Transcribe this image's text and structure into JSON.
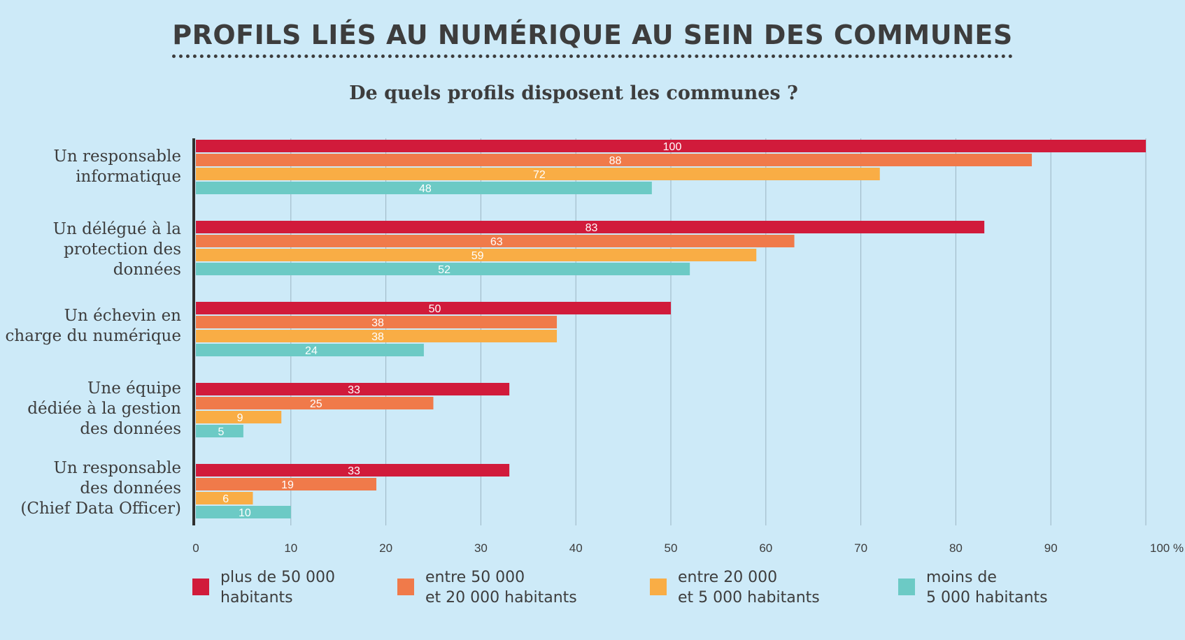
{
  "title": "PROFILS LIÉS AU NUMÉRIQUE AU SEIN DES COMMUNES",
  "subtitle": "De quels profils disposent les communes ?",
  "chart_data": {
    "type": "bar",
    "orientation": "horizontal",
    "categories": [
      "Un responsable\ninformatique",
      "Un délégué à la\nprotection des\ndonnées",
      "Un échevin en\ncharge du numérique",
      "Une équipe\ndédiée à la gestion\ndes données",
      "Un responsable\ndes données\n(Chief Data Officer)"
    ],
    "series": [
      {
        "name": "plus de 50 000\nhabitants",
        "color": "#d11b3b",
        "values": [
          100,
          83,
          50,
          33,
          33
        ]
      },
      {
        "name": "entre 50 000\net 20 000 habitants",
        "color": "#f07a4a",
        "values": [
          88,
          63,
          38,
          25,
          19
        ]
      },
      {
        "name": "entre 20 000\net 5 000 habitants",
        "color": "#f9ad45",
        "values": [
          72,
          59,
          38,
          9,
          6
        ]
      },
      {
        "name": "moins de\n5 000 habitants",
        "color": "#6ccac5",
        "values": [
          48,
          52,
          24,
          5,
          10
        ]
      }
    ],
    "xlim": [
      0,
      100
    ],
    "xticks": [
      "0",
      "10",
      "20",
      "30",
      "40",
      "50",
      "60",
      "70",
      "80",
      "90",
      "100 %"
    ],
    "grid": true,
    "legend": "bottom"
  }
}
